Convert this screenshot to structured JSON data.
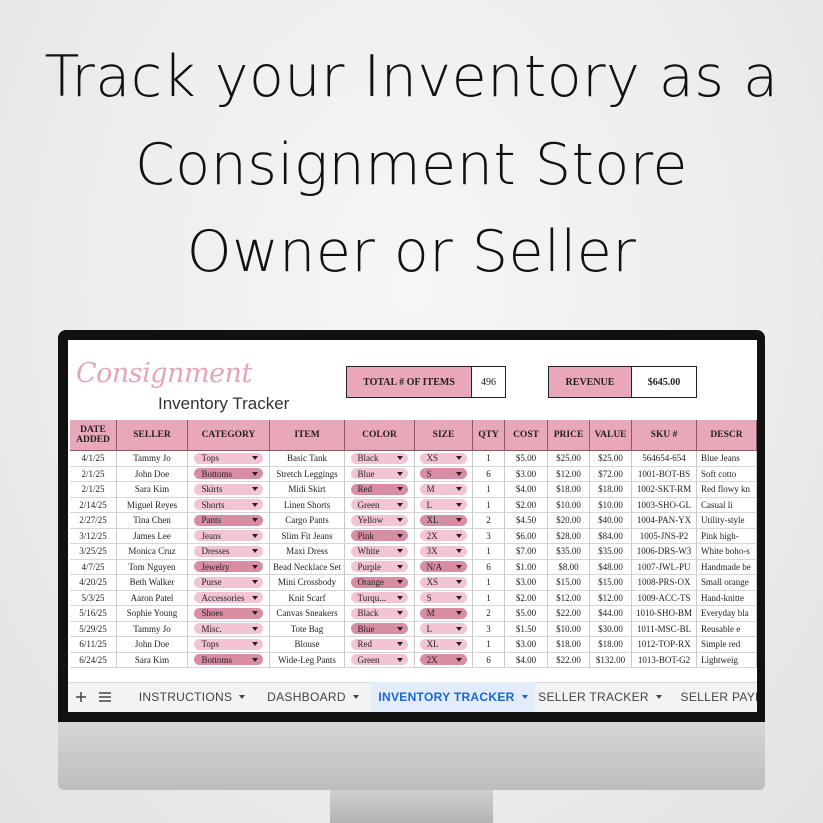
{
  "headline": {
    "lines": [
      "Track your Inventory as a",
      "Consignment Store",
      "Owner or Seller"
    ]
  },
  "brand": {
    "script": "Consignment",
    "subtitle": "Inventory Tracker"
  },
  "summary": [
    {
      "label": "TOTAL # OF ITEMS",
      "value": "496"
    },
    {
      "label": "REVENUE",
      "value": "$645.00"
    }
  ],
  "table": {
    "columns": [
      "DATE ADDED",
      "SELLER",
      "CATEGORY",
      "ITEM",
      "COLOR",
      "SIZE",
      "QTY",
      "COST",
      "PRICE",
      "VALUE",
      "SKU #",
      "DESCR"
    ],
    "rows": [
      [
        "4/1/25",
        "Tammy Jo",
        "Tops",
        "Basic Tank",
        "Black",
        "XS",
        "1",
        "$5.00",
        "$25.00",
        "$25.00",
        "564654-654",
        "Blue Jeans"
      ],
      [
        "2/1/25",
        "John Doe",
        "Bottoms",
        "Stretch Leggings",
        "Blue",
        "S",
        "6",
        "$3.00",
        "$12.00",
        "$72.00",
        "1001-BOT-BS",
        "Soft cotto"
      ],
      [
        "2/1/25",
        "Sara Kim",
        "Skirts",
        "Midi Skirt",
        "Red",
        "M",
        "1",
        "$4.00",
        "$18.00",
        "$18.00",
        "1002-SKT-RM",
        "Red flowy kn"
      ],
      [
        "2/14/25",
        "Miguel Reyes",
        "Shorts",
        "Linen Shorts",
        "Green",
        "L",
        "1",
        "$2.00",
        "$10.00",
        "$10.00",
        "1003-SHO-GL",
        "Casual li"
      ],
      [
        "2/27/25",
        "Tina Chen",
        "Pants",
        "Cargo Pants",
        "Yellow",
        "XL",
        "2",
        "$4.50",
        "$20.00",
        "$40.00",
        "1004-PAN-YX",
        "Utility-style"
      ],
      [
        "3/12/25",
        "James Lee",
        "Jeans",
        "Slim Fit Jeans",
        "Pink",
        "2X",
        "3",
        "$6.00",
        "$28.00",
        "$84.00",
        "1005-JNS-P2",
        "Pink high-"
      ],
      [
        "3/25/25",
        "Monica Cruz",
        "Dresses",
        "Maxi Dress",
        "White",
        "3X",
        "1",
        "$7.00",
        "$35.00",
        "$35.00",
        "1006-DRS-W3",
        "White boho-s"
      ],
      [
        "4/7/25",
        "Tom Nguyen",
        "Jewelry",
        "Bead Necklace Set",
        "Purple",
        "N/A",
        "6",
        "$1.00",
        "$8.00",
        "$48.00",
        "1007-JWL-PU",
        "Handmade be"
      ],
      [
        "4/20/25",
        "Beth Walker",
        "Purse",
        "Mini Crossbody",
        "Orange",
        "XS",
        "1",
        "$3.00",
        "$15.00",
        "$15.00",
        "1008-PRS-OX",
        "Small orange"
      ],
      [
        "5/3/25",
        "Aaron Patel",
        "Accessories",
        "Knit Scarf",
        "Turqu...",
        "S",
        "1",
        "$2.00",
        "$12.00",
        "$12.00",
        "1009-ACC-TS",
        "Hand-knitte"
      ],
      [
        "5/16/25",
        "Sophie Young",
        "Shoes",
        "Canvas Sneakers",
        "Black",
        "M",
        "2",
        "$5.00",
        "$22.00",
        "$44.00",
        "1010-SHO-BM",
        "Everyday bla"
      ],
      [
        "5/29/25",
        "Tammy Jo",
        "Misc.",
        "Tote Bag",
        "Blue",
        "L",
        "3",
        "$1.50",
        "$10.00",
        "$30.00",
        "1011-MSC-BL",
        "Reusable e"
      ],
      [
        "6/11/25",
        "John Doe",
        "Tops",
        "Blouse",
        "Red",
        "XL",
        "1",
        "$3.00",
        "$18.00",
        "$18.00",
        "1012-TOP-RX",
        "Simple red"
      ],
      [
        "6/24/25",
        "Sara Kim",
        "Bottoms",
        "Wide-Leg Pants",
        "Green",
        "2X",
        "6",
        "$4.00",
        "$22.00",
        "$132.00",
        "1013-BOT-G2",
        "Lightweig"
      ]
    ]
  },
  "tabs": [
    "INSTRUCTIONS",
    "DASHBOARD",
    "INVENTORY TRACKER",
    "SELLER TRACKER",
    "SELLER PAYM"
  ],
  "active_tab": 2
}
